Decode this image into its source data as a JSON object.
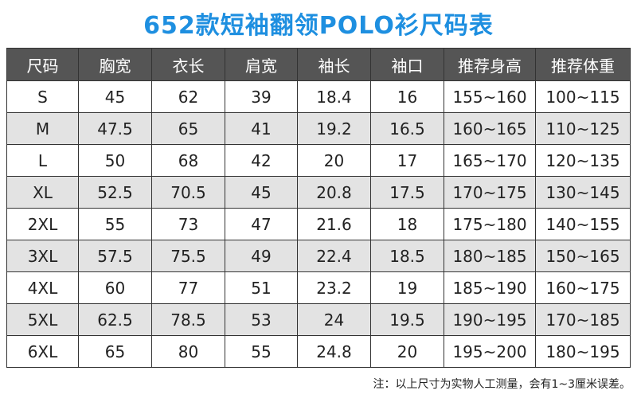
{
  "title": "652款短袖翻领POLO衫尺码表",
  "columns": [
    "尺码",
    "胸宽",
    "衣长",
    "肩宽",
    "袖长",
    "袖口",
    "推荐身高",
    "推荐体重"
  ],
  "rows": [
    [
      "S",
      "45",
      "62",
      "39",
      "18.4",
      "16",
      "155~160",
      "100~115"
    ],
    [
      "M",
      "47.5",
      "65",
      "41",
      "19.2",
      "16.5",
      "160~165",
      "110~125"
    ],
    [
      "L",
      "50",
      "68",
      "42",
      "20",
      "17",
      "165~170",
      "120~135"
    ],
    [
      "XL",
      "52.5",
      "70.5",
      "45",
      "20.8",
      "17.5",
      "170~175",
      "130~145"
    ],
    [
      "2XL",
      "55",
      "73",
      "47",
      "21.6",
      "18",
      "175~180",
      "140~155"
    ],
    [
      "3XL",
      "57.5",
      "75.5",
      "49",
      "22.4",
      "18.5",
      "180~185",
      "150~165"
    ],
    [
      "4XL",
      "60",
      "77",
      "51",
      "23.2",
      "19",
      "185~190",
      "160~175"
    ],
    [
      "5XL",
      "62.5",
      "78.5",
      "53",
      "24",
      "19.5",
      "190~195",
      "170~185"
    ],
    [
      "6XL",
      "65",
      "80",
      "55",
      "24.8",
      "20",
      "195~200",
      "180~195"
    ]
  ],
  "note": "注：以上尺寸为实物人工测量，会有1~3厘米误差。",
  "colors": {
    "title": "#1e8fe0",
    "header_bg": "#555555",
    "row_even_bg": "#e3e3e3",
    "row_odd_bg": "#ffffff"
  }
}
